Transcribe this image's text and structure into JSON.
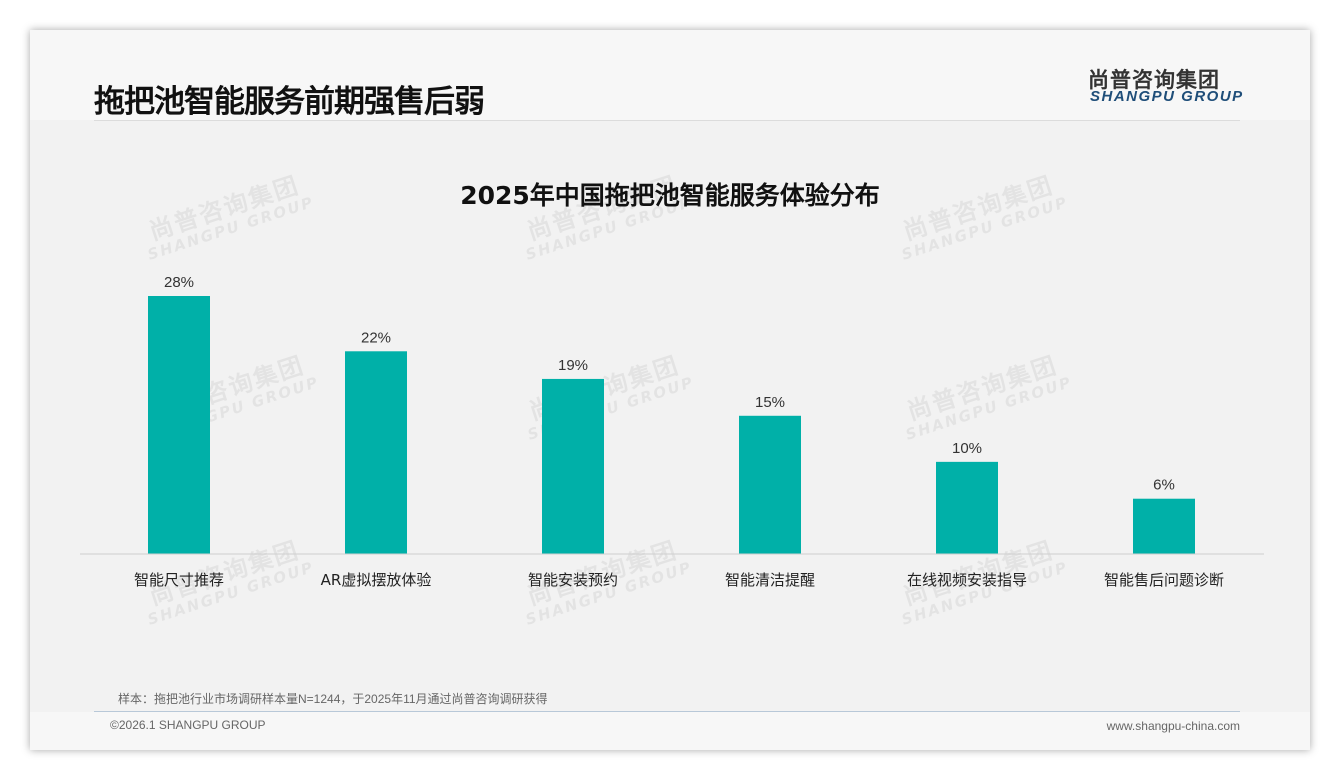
{
  "header": {
    "title": "拖把池智能服务前期强售后弱",
    "logo_cn": "尚普咨询集团",
    "logo_en": "SHANGPU GROUP"
  },
  "watermark": {
    "cn": "尚普咨询集团",
    "en": "SHANGPU GROUP"
  },
  "chart_data": {
    "type": "bar",
    "title": "2025年中国拖把池智能服务体验分布",
    "categories": [
      "智能尺寸推荐",
      "AR虚拟摆放体验",
      "智能安装预约",
      "智能清洁提醒",
      "在线视频安装指导",
      "智能售后问题诊断"
    ],
    "values": [
      28,
      22,
      19,
      15,
      10,
      6
    ],
    "labels": [
      "28%",
      "22%",
      "19%",
      "15%",
      "10%",
      "6%"
    ],
    "unit": "%",
    "ylim": [
      0,
      30
    ],
    "grid": false,
    "color": "#00b0a8"
  },
  "footer": {
    "note": "样本：拖把池行业市场调研样本量N=1244，于2025年11月通过尚普咨询调研获得",
    "copyright": "©2026.1 SHANGPU GROUP",
    "url": "www.shangpu-china.com"
  }
}
